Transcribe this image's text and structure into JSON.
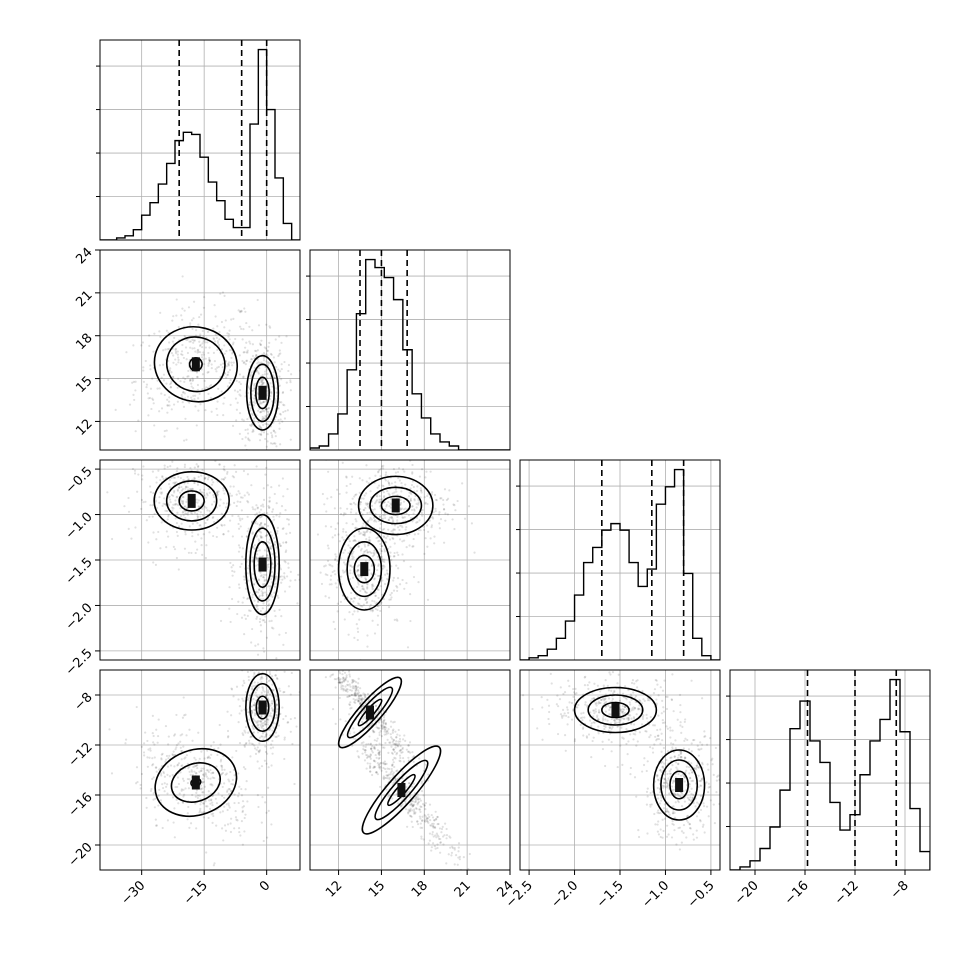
{
  "chart_data": {
    "type": "corner",
    "parameters": [
      {
        "range": [
          -40,
          8
        ],
        "ticks": [
          -30,
          -15,
          0
        ],
        "tick_labels": [
          "−30",
          "−15",
          "0"
        ],
        "quantiles": [
          -21,
          -6,
          0
        ],
        "hist": {
          "edges": [
            -40,
            -38,
            -36,
            -34,
            -32,
            -30,
            -28,
            -26,
            -24,
            -22,
            -20,
            -18,
            -16,
            -14,
            -12,
            -10,
            -8,
            -6,
            -4,
            -2,
            0,
            2,
            4,
            6,
            8
          ],
          "counts": [
            0,
            0,
            1,
            2,
            5,
            12,
            18,
            27,
            37,
            48,
            52,
            51,
            40,
            28,
            19,
            10,
            6,
            6,
            56,
            92,
            63,
            30,
            8,
            0
          ]
        }
      },
      {
        "range": [
          10,
          24
        ],
        "ticks": [
          12,
          15,
          18,
          21,
          24
        ],
        "tick_labels": [
          "12",
          "15",
          "18",
          "21",
          "24"
        ],
        "quantiles": [
          13.5,
          15.0,
          16.8
        ],
        "hist": {
          "edges": [
            10,
            10.65,
            11.3,
            11.95,
            12.6,
            13.25,
            13.9,
            14.55,
            15.2,
            15.85,
            16.5,
            17.15,
            17.8,
            18.45,
            19.1,
            19.75,
            20.4,
            21.05,
            21.7,
            22.35,
            23,
            23.65,
            24
          ],
          "counts": [
            1,
            2,
            8,
            18,
            40,
            68,
            95,
            91,
            86,
            75,
            50,
            28,
            16,
            8,
            4,
            2,
            0,
            0,
            0,
            0,
            0,
            0
          ]
        }
      },
      {
        "range": [
          -2.6,
          -0.4
        ],
        "ticks": [
          -2.5,
          -2.0,
          -1.5,
          -1.0,
          -0.5
        ],
        "tick_labels": [
          "−2.5",
          "−2.0",
          "−1.5",
          "−1.0",
          "−0.5"
        ],
        "quantiles": [
          -1.7,
          -1.15,
          -0.8
        ],
        "hist": {
          "edges": [
            -2.6,
            -2.5,
            -2.4,
            -2.3,
            -2.2,
            -2.1,
            -2.0,
            -1.9,
            -1.8,
            -1.7,
            -1.6,
            -1.5,
            -1.4,
            -1.3,
            -1.2,
            -1.1,
            -1.0,
            -0.9,
            -0.8,
            -0.7,
            -0.6,
            -0.5,
            -0.4
          ],
          "counts": [
            0,
            1,
            2,
            5,
            10,
            18,
            30,
            45,
            52,
            60,
            63,
            60,
            45,
            34,
            42,
            72,
            80,
            88,
            40,
            10,
            2,
            0
          ]
        }
      },
      {
        "range": [
          -22,
          -6
        ],
        "ticks": [
          -20,
          -16,
          -12,
          -8
        ],
        "tick_labels": [
          "−20",
          "−16",
          "−12",
          "−8"
        ],
        "quantiles": [
          -15.8,
          -12.0,
          -8.7
        ],
        "hist": {
          "edges": [
            -22,
            -21.2,
            -20.4,
            -19.6,
            -18.8,
            -18.0,
            -17.2,
            -16.4,
            -15.6,
            -14.8,
            -14.0,
            -13.2,
            -12.4,
            -11.6,
            -10.8,
            -10.0,
            -9.2,
            -8.4,
            -7.6,
            -6.8,
            -6,
            -5.2
          ],
          "counts": [
            0,
            1,
            3,
            7,
            14,
            26,
            46,
            55,
            42,
            35,
            22,
            13,
            18,
            31,
            42,
            49,
            62,
            45,
            20,
            6,
            0
          ]
        }
      }
    ],
    "pair_contours": [
      {
        "row": 1,
        "col": 0,
        "blobs": [
          {
            "cx": -17,
            "cy": 16,
            "levels": [
              [
                10,
                2.6
              ],
              [
                7,
                1.9
              ],
              [
                1.5,
                0.45
              ]
            ],
            "rot": -0.25
          },
          {
            "cx": -1,
            "cy": 14,
            "levels": [
              [
                3.8,
                2.6
              ],
              [
                2.8,
                2.0
              ],
              [
                1.6,
                1.1
              ]
            ],
            "rot": 0.0
          }
        ]
      },
      {
        "row": 2,
        "col": 0,
        "blobs": [
          {
            "cx": -18,
            "cy": -0.85,
            "levels": [
              [
                9,
                0.32
              ],
              [
                6,
                0.22
              ],
              [
                3,
                0.11
              ]
            ],
            "rot": 0.0
          },
          {
            "cx": -1,
            "cy": -1.55,
            "levels": [
              [
                4,
                0.55
              ],
              [
                3,
                0.4
              ],
              [
                2,
                0.25
              ]
            ],
            "rot": 0.0
          }
        ]
      },
      {
        "row": 2,
        "col": 1,
        "blobs": [
          {
            "cx": 16,
            "cy": -0.9,
            "levels": [
              [
                2.6,
                0.32
              ],
              [
                1.8,
                0.2
              ],
              [
                1.0,
                0.1
              ]
            ],
            "rot": 0.0
          },
          {
            "cx": 13.8,
            "cy": -1.6,
            "levels": [
              [
                1.8,
                0.45
              ],
              [
                1.2,
                0.3
              ],
              [
                0.7,
                0.15
              ]
            ],
            "rot": 0.0
          }
        ]
      },
      {
        "row": 3,
        "col": 0,
        "blobs": [
          {
            "cx": -17,
            "cy": -15,
            "levels": [
              [
                10,
                2.6
              ],
              [
                6,
                1.5
              ],
              [
                1.2,
                0.3
              ]
            ],
            "rot": 0.35
          },
          {
            "cx": -1,
            "cy": -9,
            "levels": [
              [
                4,
                2.7
              ],
              [
                3,
                1.9
              ],
              [
                1.5,
                0.9
              ]
            ],
            "rot": 0.0
          }
        ]
      },
      {
        "row": 3,
        "col": 1,
        "blobs": [
          {
            "cx": 14.2,
            "cy": -9.4,
            "levels": [
              [
                3.2,
                0.9
              ],
              [
                2.3,
                0.6
              ],
              [
                1.2,
                0.3
              ]
            ],
            "rot": 0.85
          },
          {
            "cx": 16.4,
            "cy": -15.6,
            "levels": [
              [
                4.0,
                1.1
              ],
              [
                2.7,
                0.7
              ],
              [
                1.4,
                0.35
              ]
            ],
            "rot": 0.85
          }
        ]
      },
      {
        "row": 3,
        "col": 2,
        "blobs": [
          {
            "cx": -1.55,
            "cy": -9.2,
            "levels": [
              [
                0.45,
                1.8
              ],
              [
                0.3,
                1.2
              ],
              [
                0.15,
                0.6
              ]
            ],
            "rot": 0.0
          },
          {
            "cx": -0.85,
            "cy": -15.2,
            "levels": [
              [
                0.28,
                2.8
              ],
              [
                0.2,
                2.0
              ],
              [
                0.1,
                1.1
              ]
            ],
            "rot": 0.0
          }
        ]
      }
    ],
    "grid": true
  }
}
